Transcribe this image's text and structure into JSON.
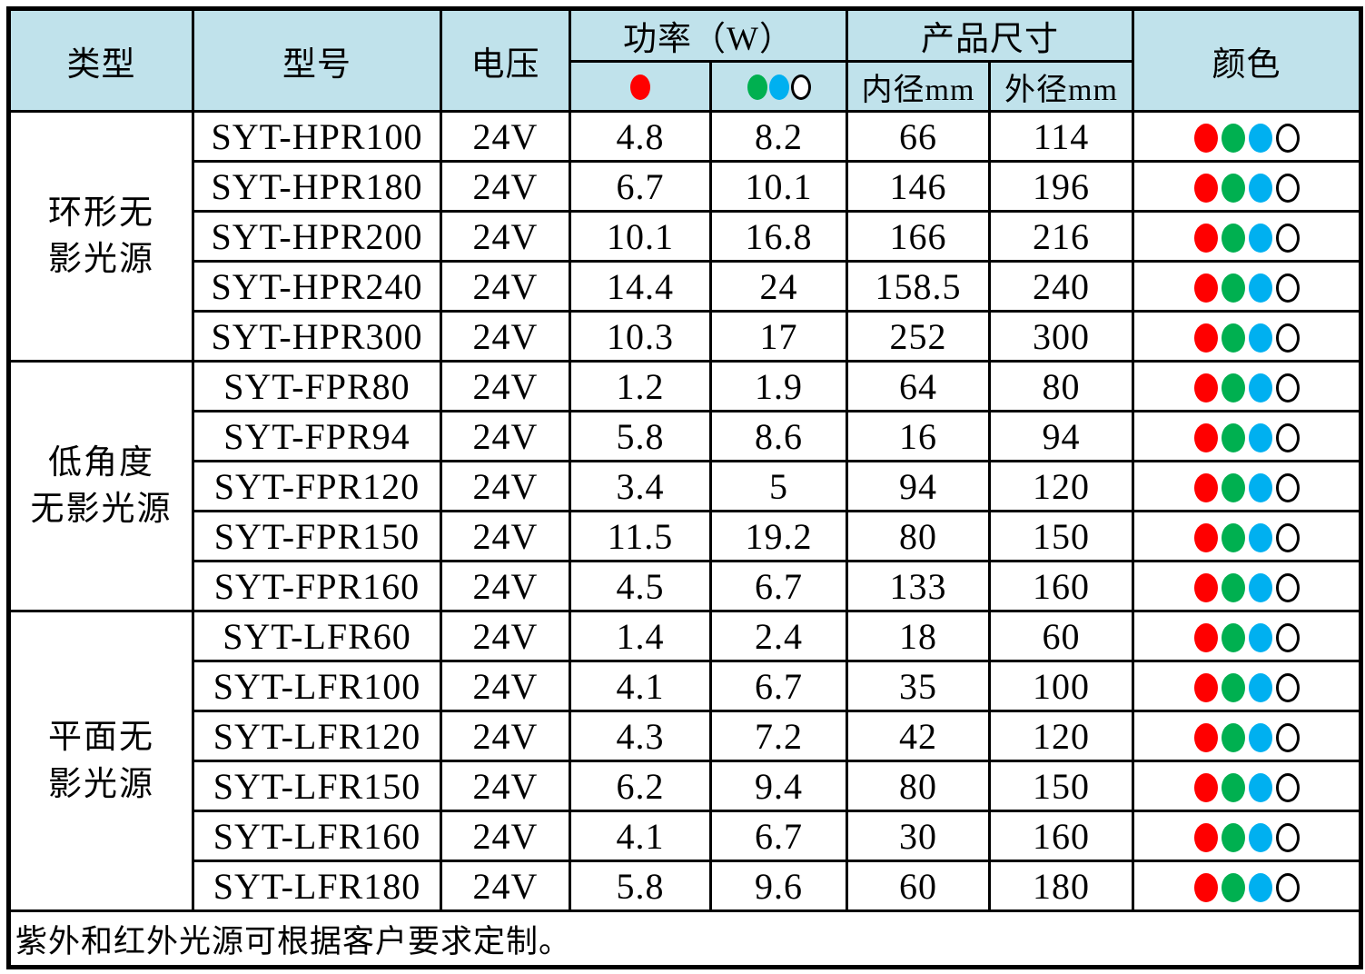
{
  "colors": {
    "header_bg": "#c0e2eb",
    "border": "#000000",
    "dot_red": "#ff0000",
    "dot_green": "#00b050",
    "dot_blue": "#00b0f0",
    "dot_white": "#ffffff"
  },
  "table": {
    "header": {
      "type": "类型",
      "model": "型号",
      "voltage": "电压",
      "power": "功率（W）",
      "power_sub_red_icon": "red-dot",
      "power_sub_multi_icons": [
        "green-dot",
        "blue-dot",
        "white-dot"
      ],
      "size": "产品尺寸",
      "inner": "内径mm",
      "outer": "外径mm",
      "color": "颜色"
    },
    "row_color_dots": [
      "red",
      "green",
      "blue",
      "white"
    ],
    "groups": [
      {
        "category": "环形无影光源",
        "category_lines": [
          "环形无",
          "影光源"
        ],
        "rows": [
          {
            "model": "SYT-HPR100",
            "voltage": "24V",
            "power_red": "4.8",
            "power_multi": "8.2",
            "inner_mm": "66",
            "outer_mm": "114"
          },
          {
            "model": "SYT-HPR180",
            "voltage": "24V",
            "power_red": "6.7",
            "power_multi": "10.1",
            "inner_mm": "146",
            "outer_mm": "196"
          },
          {
            "model": "SYT-HPR200",
            "voltage": "24V",
            "power_red": "10.1",
            "power_multi": "16.8",
            "inner_mm": "166",
            "outer_mm": "216"
          },
          {
            "model": "SYT-HPR240",
            "voltage": "24V",
            "power_red": "14.4",
            "power_multi": "24",
            "inner_mm": "158.5",
            "outer_mm": "240"
          },
          {
            "model": "SYT-HPR300",
            "voltage": "24V",
            "power_red": "10.3",
            "power_multi": "17",
            "inner_mm": "252",
            "outer_mm": "300"
          }
        ]
      },
      {
        "category": "低角度无影光源",
        "category_lines": [
          "低角度",
          "无影光源"
        ],
        "rows": [
          {
            "model": "SYT-FPR80",
            "voltage": "24V",
            "power_red": "1.2",
            "power_multi": "1.9",
            "inner_mm": "64",
            "outer_mm": "80"
          },
          {
            "model": "SYT-FPR94",
            "voltage": "24V",
            "power_red": "5.8",
            "power_multi": "8.6",
            "inner_mm": "16",
            "outer_mm": "94"
          },
          {
            "model": "SYT-FPR120",
            "voltage": "24V",
            "power_red": "3.4",
            "power_multi": "5",
            "inner_mm": "94",
            "outer_mm": "120"
          },
          {
            "model": "SYT-FPR150",
            "voltage": "24V",
            "power_red": "11.5",
            "power_multi": "19.2",
            "inner_mm": "80",
            "outer_mm": "150"
          },
          {
            "model": "SYT-FPR160",
            "voltage": "24V",
            "power_red": "4.5",
            "power_multi": "6.7",
            "inner_mm": "133",
            "outer_mm": "160"
          }
        ]
      },
      {
        "category": "平面无影光源",
        "category_lines": [
          "平面无",
          "影光源"
        ],
        "rows": [
          {
            "model": "SYT-LFR60",
            "voltage": "24V",
            "power_red": "1.4",
            "power_multi": "2.4",
            "inner_mm": "18",
            "outer_mm": "60"
          },
          {
            "model": "SYT-LFR100",
            "voltage": "24V",
            "power_red": "4.1",
            "power_multi": "6.7",
            "inner_mm": "35",
            "outer_mm": "100"
          },
          {
            "model": "SYT-LFR120",
            "voltage": "24V",
            "power_red": "4.3",
            "power_multi": "7.2",
            "inner_mm": "42",
            "outer_mm": "120"
          },
          {
            "model": "SYT-LFR150",
            "voltage": "24V",
            "power_red": "6.2",
            "power_multi": "9.4",
            "inner_mm": "80",
            "outer_mm": "150"
          },
          {
            "model": "SYT-LFR160",
            "voltage": "24V",
            "power_red": "4.1",
            "power_multi": "6.7",
            "inner_mm": "30",
            "outer_mm": "160"
          },
          {
            "model": "SYT-LFR180",
            "voltage": "24V",
            "power_red": "5.8",
            "power_multi": "9.6",
            "inner_mm": "60",
            "outer_mm": "180"
          }
        ]
      }
    ],
    "note": "紫外和红外光源可根据客户要求定制。"
  }
}
